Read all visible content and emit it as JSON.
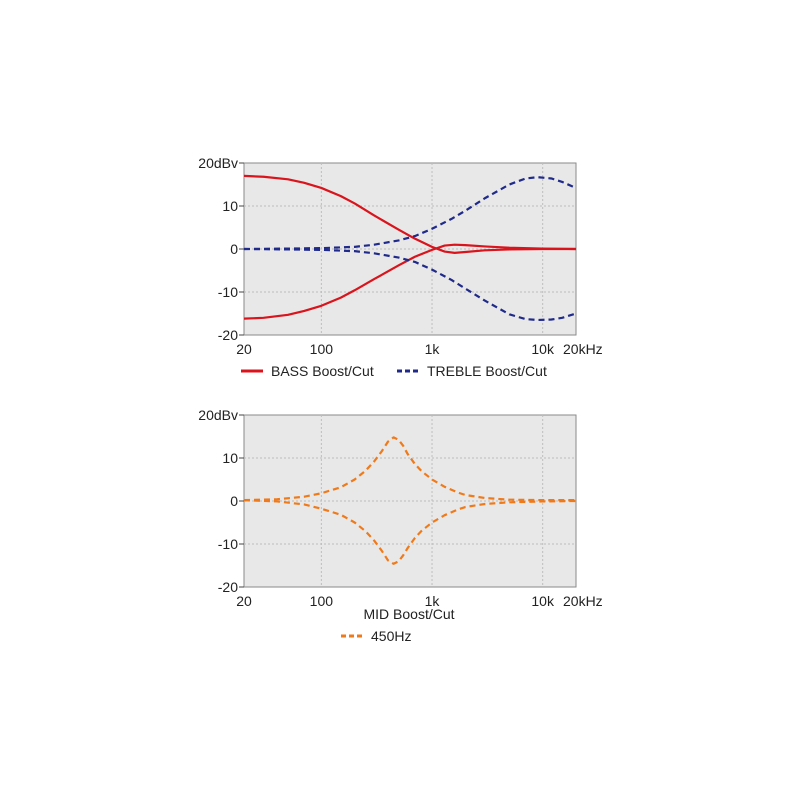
{
  "colors": {
    "bass": "#d9141c",
    "treble": "#1f2a8a",
    "mid": "#f07a1a",
    "plot_background": "#e8e8e8",
    "grid": "#bdbdbd"
  },
  "chart_data": [
    {
      "type": "line",
      "x_scale": "log",
      "xlim": [
        20,
        20000
      ],
      "ylim": [
        -20,
        20
      ],
      "grid": true,
      "x_ticks": [
        {
          "value": 20,
          "label": "20"
        },
        {
          "value": 100,
          "label": "100"
        },
        {
          "value": 1000,
          "label": "1k"
        },
        {
          "value": 10000,
          "label": "10k"
        },
        {
          "value": 20000,
          "label": "20kHz"
        }
      ],
      "y_ticks": [
        {
          "value": 20,
          "label": "20dBv"
        },
        {
          "value": 10,
          "label": "10"
        },
        {
          "value": 0,
          "label": "0"
        },
        {
          "value": -10,
          "label": "-10"
        },
        {
          "value": -20,
          "label": "-20"
        }
      ],
      "legend": [
        {
          "label": "BASS Boost/Cut",
          "color_key": "bass",
          "dash": "solid"
        },
        {
          "label": "TREBLE Boost/Cut",
          "color_key": "treble",
          "dash": "dashed"
        }
      ],
      "legend_placement": "bottom",
      "series": [
        {
          "group": "BASS Boost/Cut",
          "color_key": "bass",
          "dash": "solid",
          "x": [
            20,
            30,
            50,
            70,
            100,
            150,
            200,
            300,
            500,
            700,
            1000,
            1300,
            1600,
            2000,
            3000,
            5000,
            10000,
            20000
          ],
          "y": [
            17,
            16.8,
            16.2,
            15.4,
            14.2,
            12.3,
            10.6,
            7.8,
            4.5,
            2.4,
            0.5,
            -0.6,
            -0.9,
            -0.7,
            -0.3,
            -0.1,
            0,
            0
          ]
        },
        {
          "group": "BASS Boost/Cut",
          "color_key": "bass",
          "dash": "solid",
          "x": [
            20,
            30,
            50,
            70,
            100,
            150,
            200,
            300,
            500,
            700,
            1000,
            1300,
            1600,
            2000,
            3000,
            5000,
            10000,
            20000
          ],
          "y": [
            -16.2,
            -16,
            -15.3,
            -14.4,
            -13.2,
            -11.3,
            -9.6,
            -7,
            -3.8,
            -1.8,
            -0.2,
            0.8,
            1,
            0.9,
            0.6,
            0.3,
            0.1,
            0
          ]
        },
        {
          "group": "TREBLE Boost/Cut",
          "color_key": "treble",
          "dash": "dashed",
          "x": [
            20,
            50,
            100,
            200,
            300,
            500,
            700,
            1000,
            1500,
            2000,
            3000,
            5000,
            7000,
            9000,
            12000,
            15000,
            20000
          ],
          "y": [
            0,
            0.1,
            0.2,
            0.5,
            1,
            2,
            3,
            4.7,
            7,
            8.9,
            11.8,
            15,
            16.4,
            16.7,
            16.4,
            15.6,
            14.2
          ]
        },
        {
          "group": "TREBLE Boost/Cut",
          "color_key": "treble",
          "dash": "dashed",
          "x": [
            20,
            50,
            100,
            200,
            300,
            500,
            700,
            1000,
            1500,
            2000,
            3000,
            5000,
            7000,
            9000,
            12000,
            15000,
            20000
          ],
          "y": [
            0,
            -0.1,
            -0.2,
            -0.5,
            -1,
            -2,
            -3,
            -4.8,
            -7.2,
            -9.2,
            -12,
            -15.2,
            -16.3,
            -16.5,
            -16.4,
            -16,
            -15
          ]
        }
      ]
    },
    {
      "type": "line",
      "x_scale": "log",
      "xlim": [
        20,
        20000
      ],
      "ylim": [
        -20,
        20
      ],
      "grid": true,
      "x_ticks": [
        {
          "value": 20,
          "label": "20"
        },
        {
          "value": 100,
          "label": "100"
        },
        {
          "value": 1000,
          "label": "1k"
        },
        {
          "value": 10000,
          "label": "10k"
        },
        {
          "value": 20000,
          "label": "20kHz"
        }
      ],
      "y_ticks": [
        {
          "value": 20,
          "label": "20dBv"
        },
        {
          "value": 10,
          "label": "10"
        },
        {
          "value": 0,
          "label": "0"
        },
        {
          "value": -10,
          "label": "-10"
        },
        {
          "value": -20,
          "label": "-20"
        }
      ],
      "caption": "MID Boost/Cut",
      "legend": [
        {
          "label": "450Hz",
          "color_key": "mid",
          "dash": "dashed"
        }
      ],
      "legend_placement": "bottom",
      "series": [
        {
          "group": "450Hz",
          "color_key": "mid",
          "dash": "dashed",
          "x": [
            20,
            40,
            70,
            100,
            150,
            200,
            250,
            300,
            350,
            400,
            450,
            500,
            550,
            600,
            700,
            800,
            1000,
            1300,
            1700,
            2000,
            3000,
            5000,
            10000,
            20000
          ],
          "y": [
            0.2,
            0.4,
            1,
            1.8,
            3.2,
            5,
            7,
            9.2,
            11.5,
            13.8,
            14.8,
            14.2,
            12.8,
            11,
            8.6,
            7,
            5,
            3.3,
            2,
            1.4,
            0.7,
            0.3,
            0.2,
            0.2
          ]
        },
        {
          "group": "450Hz",
          "color_key": "mid",
          "dash": "dashed",
          "x": [
            20,
            40,
            70,
            100,
            150,
            200,
            250,
            300,
            350,
            400,
            450,
            500,
            550,
            600,
            700,
            800,
            1000,
            1300,
            1700,
            2000,
            3000,
            5000,
            10000,
            20000
          ],
          "y": [
            0.2,
            -0.1,
            -0.8,
            -1.8,
            -3.2,
            -5,
            -7,
            -9.2,
            -11.5,
            -13.8,
            -14.6,
            -14,
            -12.6,
            -11,
            -8.6,
            -7,
            -5,
            -3.3,
            -2,
            -1.4,
            -0.7,
            -0.3,
            -0.1,
            0
          ]
        }
      ]
    }
  ]
}
